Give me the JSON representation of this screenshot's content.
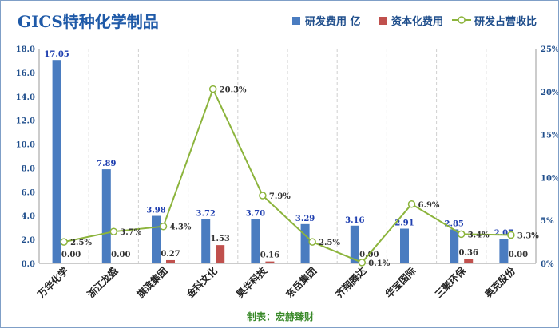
{
  "title": "GICS特种化学制品",
  "credit": "制表：宏赫臻财",
  "chart_data": {
    "type": "bar",
    "categories": [
      "万华化学",
      "浙江龙盛",
      "旗滨集团",
      "金科文化",
      "昊华科技",
      "东岳集团",
      "齐翔腾达",
      "华宝国际",
      "三聚环保",
      "奥克股份"
    ],
    "series": [
      {
        "name": "研发费用 亿",
        "type": "bar",
        "axis": "left",
        "color": "#4a7cc0",
        "values": [
          17.05,
          7.89,
          3.98,
          3.72,
          3.7,
          3.29,
          3.16,
          2.91,
          2.85,
          2.07
        ],
        "labels": [
          "17.05",
          "7.89",
          "3.98",
          "3.72",
          "3.70",
          "3.29",
          "3.16",
          "2.91",
          "2.85",
          "2.07"
        ]
      },
      {
        "name": "资本化费用",
        "type": "bar",
        "axis": "left",
        "color": "#c0504d",
        "values": [
          0.0,
          0.0,
          0.27,
          1.53,
          0.16,
          0.0,
          0.0,
          0.0,
          0.36,
          0.0
        ],
        "labels": [
          "0.00",
          "0.00",
          "0.27",
          "1.53",
          "0.16",
          "",
          "0.00",
          "",
          "0.36",
          "0.00"
        ]
      },
      {
        "name": "研发占营收比",
        "type": "line",
        "axis": "right",
        "color": "#8cb43c",
        "values": [
          2.5,
          3.7,
          4.3,
          20.3,
          7.9,
          2.5,
          0.1,
          6.9,
          3.4,
          3.3
        ],
        "labels": [
          "2.5%",
          "3.7%",
          "4.3%",
          "20.3%",
          "7.9%",
          "2.5%",
          "0.1%",
          "6.9%",
          "3.4%",
          "3.3%"
        ]
      }
    ],
    "y_left": {
      "min": 0,
      "max": 18,
      "step": 2,
      "ticks": [
        "0.0",
        "2.0",
        "4.0",
        "6.0",
        "8.0",
        "10.0",
        "12.0",
        "14.0",
        "16.0",
        "18.0"
      ]
    },
    "y_right": {
      "min": 0,
      "max": 25,
      "step": 5,
      "ticks": [
        "0%",
        "5%",
        "10%",
        "15%",
        "20%",
        "25%"
      ]
    },
    "grid": "vertical",
    "legend_position": "top-right"
  }
}
